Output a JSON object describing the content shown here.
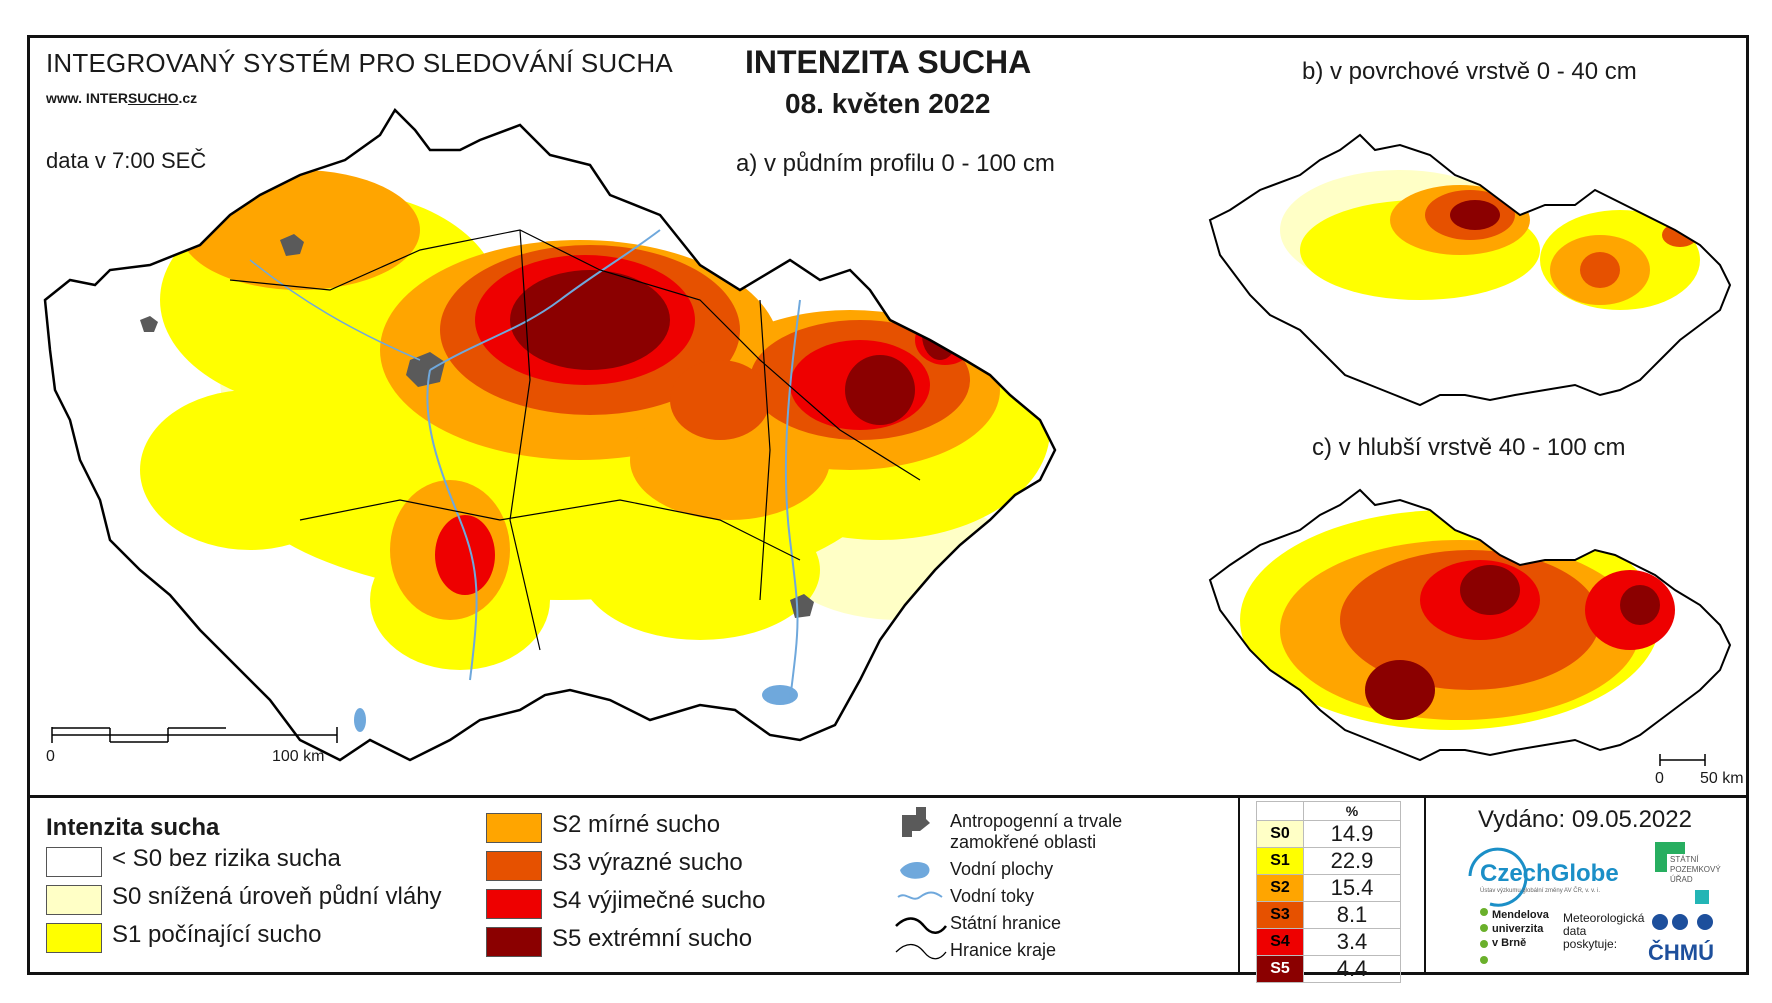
{
  "header": {
    "system_title": "INTEGROVANÝ SYSTÉM PRO SLEDOVÁNÍ SUCHA",
    "url_prefix": "www. INTER",
    "url_underlined": "SUCHO",
    "url_suffix": ".cz",
    "data_time": "data v 7:00 SEČ",
    "main_title": "INTENZITA SUCHA",
    "main_date": "08. květen 2022"
  },
  "maps": {
    "a_title": "a) v půdním profilu 0 - 100 cm",
    "b_title": "b) v povrchové vrstvě 0 - 40 cm",
    "c_title": "c) v hlubší vrstvě 40 - 100 cm",
    "scale_main": {
      "start": "0",
      "end": "100 km"
    },
    "scale_small": {
      "start": "0",
      "end": "50 km"
    }
  },
  "legend": {
    "title": "Intenzita sucha",
    "classes": [
      {
        "label": "< S0 bez rizika sucha",
        "color": "#ffffff"
      },
      {
        "label": "S0 snížená úroveň půdní vláhy",
        "color": "#ffffc6"
      },
      {
        "label": "S1 počínající sucho",
        "color": "#ffff00"
      },
      {
        "label": "S2 mírné sucho",
        "color": "#ffa500"
      },
      {
        "label": "S3 výrazné sucho",
        "color": "#e65100"
      },
      {
        "label": "S4 výjimečné sucho",
        "color": "#ee0000"
      },
      {
        "label": "S5 extrémní sucho",
        "color": "#8b0000"
      }
    ],
    "symbols": [
      {
        "label": "Antropogenní a trvale",
        "label2": "zamokřené oblasti",
        "icon": "urban-area-icon",
        "color": "#5a5a5a"
      },
      {
        "label": "Vodní plochy",
        "icon": "water-body-icon",
        "color": "#6fa8dc"
      },
      {
        "label": "Vodní toky",
        "icon": "river-icon",
        "color": "#6fa8dc"
      },
      {
        "label": "Státní hranice",
        "icon": "state-border-icon",
        "color": "#000000"
      },
      {
        "label": "Hranice kraje",
        "icon": "region-border-icon",
        "color": "#000000"
      }
    ]
  },
  "stats": {
    "header": "%",
    "rows": [
      {
        "code": "S0",
        "value": "14.9",
        "color": "#ffffc6",
        "text": "#000000"
      },
      {
        "code": "S1",
        "value": "22.9",
        "color": "#ffff00",
        "text": "#000000"
      },
      {
        "code": "S2",
        "value": "15.4",
        "color": "#ffa500",
        "text": "#000000"
      },
      {
        "code": "S3",
        "value": "8.1",
        "color": "#e65100",
        "text": "#000000"
      },
      {
        "code": "S4",
        "value": "3.4",
        "color": "#ee0000",
        "text": "#000000"
      },
      {
        "code": "S5",
        "value": "4.4",
        "color": "#8b0000",
        "text": "#ffffff"
      }
    ]
  },
  "footer": {
    "issued": "Vydáno: 09.05.2022",
    "czechglobe": "CzechGlobe",
    "czechglobe_sub": "Ústav výzkumu globální změny AV ČR, v. v. i.",
    "spu": "STÁTNÍ\nPOZEMKOVÝ\nÚŘAD",
    "mendel": "Mendelova\nuniverzita\nv Brně",
    "meteo": "Meteorologická\ndata\nposkytuje:",
    "chmu": "ČHMÚ"
  }
}
